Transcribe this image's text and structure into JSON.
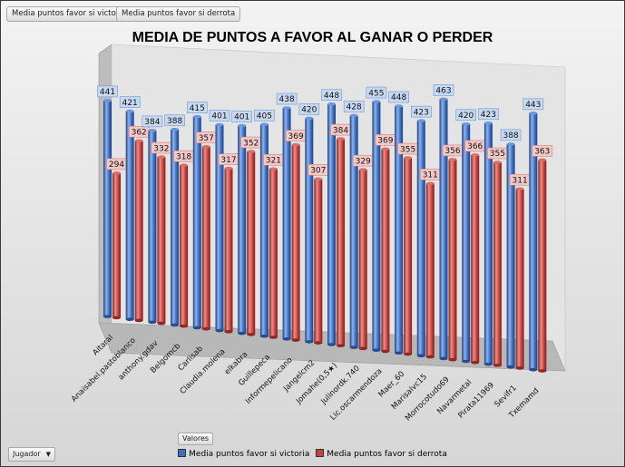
{
  "buttons": {
    "victoria": "Media puntos favor si victoria",
    "derrota": "Media puntos favor si derrota"
  },
  "valores_label": "Valores",
  "jugador_label": "Jugador",
  "colors": {
    "victoria": "#3a6fc4",
    "derrota": "#c8413c",
    "victoria_label_bg": "#c6d9f1",
    "derrota_label_bg": "#f2c9c6"
  },
  "chart_data": {
    "type": "bar",
    "title": "MEDIA DE PUNTOS A FAVOR AL GANAR O PERDER",
    "xlabel": "",
    "ylabel": "",
    "ylim": [
      0,
      500
    ],
    "categories": [
      "Aitaral",
      "Anaisabel.pastoblanco",
      "anthony.gdav",
      "Belgomcb",
      "Carlisab",
      "Claudia.molena",
      "elkabra",
      "Guillepeca",
      "Informepelicano",
      "Jangelcm2",
      "Jomahe(0,5★)",
      "Julinordk.740",
      "Lic.oscarmendoza",
      "Maer_60",
      "Marisalvc15",
      "Morrocotudo69",
      "Navarmetal",
      "Pirata11969",
      "Sevifr1",
      "Txemamd"
    ],
    "series": [
      {
        "name": "Media puntos favor si victoria",
        "values": [
          441,
          421,
          384,
          388,
          415,
          401,
          401,
          405,
          438,
          420,
          448,
          428,
          455,
          448,
          423,
          463,
          420,
          423,
          388,
          443
        ]
      },
      {
        "name": "Media puntos favor si derrota",
        "values": [
          294,
          362,
          332,
          318,
          357,
          317,
          352,
          321,
          369,
          307,
          384,
          329,
          369,
          355,
          311,
          356,
          366,
          355,
          311,
          363
        ]
      }
    ],
    "legend": "bottom"
  }
}
